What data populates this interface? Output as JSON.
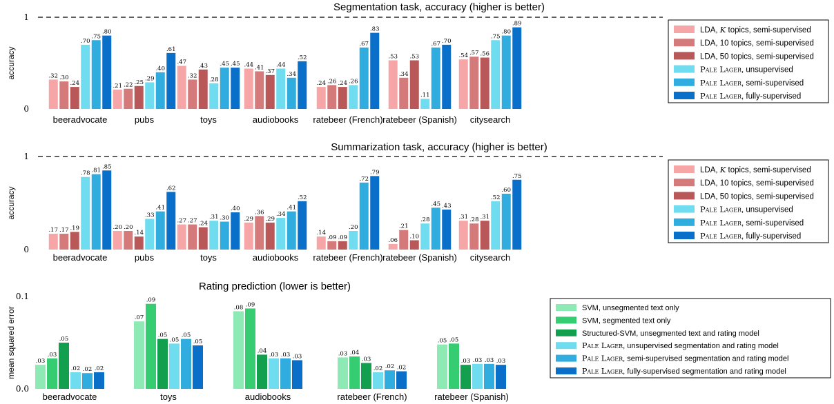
{
  "chart_data": [
    {
      "type": "bar",
      "title": "Segmentation task, accuracy (higher is better)",
      "ylabel": "accuracy",
      "ylim": [
        0,
        1
      ],
      "yticks": [
        "0",
        "1"
      ],
      "reference_line": 1,
      "categories": [
        "beeradvocate",
        "pubs",
        "toys",
        "audiobooks",
        "ratebeer (French)",
        "ratebeer (Spanish)",
        "citysearch"
      ],
      "series": [
        {
          "name": "LDA, K topics, semi-supervised",
          "color": "#f6a6a6",
          "values": [
            0.32,
            0.21,
            0.47,
            0.44,
            0.24,
            0.53,
            0.54
          ],
          "labels": [
            ".32",
            ".21",
            ".47",
            ".44",
            ".24",
            ".53",
            ".54"
          ]
        },
        {
          "name": "LDA, 10 topics, semi-supervised",
          "color": "#d57a7a",
          "values": [
            0.3,
            0.22,
            0.32,
            0.41,
            0.26,
            0.34,
            0.57
          ],
          "labels": [
            ".30",
            ".22",
            ".32",
            ".41",
            ".26",
            ".34",
            ".57"
          ]
        },
        {
          "name": "LDA, 50 topics, semi-supervised",
          "color": "#b85858",
          "values": [
            0.24,
            0.25,
            0.43,
            0.37,
            0.24,
            0.53,
            0.56
          ],
          "labels": [
            ".24",
            ".25",
            ".43",
            ".37",
            ".24",
            ".53",
            ".56"
          ]
        },
        {
          "name": "Pale Lager, unsupervised",
          "color": "#6fdcef",
          "values": [
            0.7,
            0.29,
            0.28,
            0.44,
            0.26,
            0.11,
            0.75
          ],
          "labels": [
            ".70",
            ".29",
            ".28",
            ".44",
            ".26",
            ".11",
            ".75"
          ]
        },
        {
          "name": "Pale Lager, semi-supervised",
          "color": "#30acdf",
          "values": [
            0.75,
            0.4,
            0.45,
            0.34,
            0.67,
            0.67,
            0.8
          ],
          "labels": [
            ".75",
            ".40",
            ".45",
            ".34",
            ".67",
            ".67",
            ".80"
          ]
        },
        {
          "name": "Pale Lager, fully-supervised",
          "color": "#0a6fc9",
          "values": [
            0.8,
            0.61,
            0.45,
            0.52,
            0.83,
            0.7,
            0.89
          ],
          "labels": [
            ".80",
            ".61",
            ".45",
            ".52",
            ".83",
            ".70",
            ".89"
          ]
        }
      ],
      "legend": [
        "LDA, K topics, semi-supervised",
        "LDA, 10 topics, semi-supervised",
        "LDA, 50 topics, semi-supervised",
        "Pale Lager, unsupervised",
        "Pale Lager, semi-supervised",
        "Pale Lager, fully-supervised"
      ],
      "legend_position": "right"
    },
    {
      "type": "bar",
      "title": "Summarization task, accuracy (higher is better)",
      "ylabel": "accuracy",
      "ylim": [
        0,
        1
      ],
      "yticks": [
        "0",
        "1"
      ],
      "reference_line": 1,
      "categories": [
        "beeradvocate",
        "pubs",
        "toys",
        "audiobooks",
        "ratebeer (French)",
        "ratebeer (Spanish)",
        "citysearch"
      ],
      "series": [
        {
          "name": "LDA, K topics, semi-supervised",
          "color": "#f6a6a6",
          "values": [
            0.17,
            0.2,
            0.27,
            0.29,
            0.14,
            0.06,
            0.31
          ],
          "labels": [
            ".17",
            ".20",
            ".27",
            ".29",
            ".14",
            ".06",
            ".31"
          ]
        },
        {
          "name": "LDA, 10 topics, semi-supervised",
          "color": "#d57a7a",
          "values": [
            0.17,
            0.2,
            0.27,
            0.36,
            0.09,
            0.21,
            0.28
          ],
          "labels": [
            ".17",
            ".20",
            ".27",
            ".36",
            ".09",
            ".21",
            ".28"
          ]
        },
        {
          "name": "LDA, 50 topics, semi-supervised",
          "color": "#b85858",
          "values": [
            0.19,
            0.14,
            0.24,
            0.29,
            0.09,
            0.1,
            0.31
          ],
          "labels": [
            ".19",
            ".14",
            ".24",
            ".29",
            ".09",
            ".10",
            ".31"
          ]
        },
        {
          "name": "Pale Lager, unsupervised",
          "color": "#6fdcef",
          "values": [
            0.78,
            0.33,
            0.31,
            0.34,
            0.2,
            0.28,
            0.52
          ],
          "labels": [
            ".78",
            ".33",
            ".31",
            ".34",
            ".20",
            ".28",
            ".52"
          ]
        },
        {
          "name": "Pale Lager, semi-supervised",
          "color": "#30acdf",
          "values": [
            0.81,
            0.41,
            0.3,
            0.41,
            0.72,
            0.45,
            0.6
          ],
          "labels": [
            ".81",
            ".41",
            ".30",
            ".41",
            ".72",
            ".45",
            ".60"
          ]
        },
        {
          "name": "Pale Lager, fully-supervised",
          "color": "#0a6fc9",
          "values": [
            0.85,
            0.62,
            0.4,
            0.52,
            0.79,
            0.43,
            0.75
          ],
          "labels": [
            ".85",
            ".62",
            ".40",
            ".52",
            ".79",
            ".43",
            ".75"
          ]
        }
      ],
      "legend": [
        "LDA, K topics, semi-supervised",
        "LDA, 10 topics, semi-supervised",
        "LDA, 50 topics, semi-supervised",
        "Pale Lager, unsupervised",
        "Pale Lager, semi-supervised",
        "Pale Lager, fully-supervised"
      ],
      "legend_position": "right"
    },
    {
      "type": "bar",
      "title": "Rating prediction (lower is better)",
      "ylabel": "mean squared error",
      "ylim": [
        0,
        0.1
      ],
      "yticks": [
        "0.0",
        "0.1"
      ],
      "categories": [
        "beeradvocate",
        "toys",
        "audiobooks",
        "ratebeer (French)",
        "ratebeer (Spanish)"
      ],
      "series": [
        {
          "name": "SVM, unsegmented text only",
          "color": "#8eeab5",
          "values": [
            0.026,
            0.073,
            0.084,
            0.034,
            0.048
          ],
          "labels": [
            ".03",
            ".07",
            ".08",
            ".03",
            ".05"
          ]
        },
        {
          "name": "SVM, segmented text only",
          "color": "#36cc72",
          "values": [
            0.033,
            0.092,
            0.087,
            0.035,
            0.049
          ],
          "labels": [
            ".03",
            ".09",
            ".09",
            ".04",
            ".05"
          ]
        },
        {
          "name": "Structured-SVM, unsegmented text and rating model",
          "color": "#12a04e",
          "values": [
            0.05,
            0.054,
            0.037,
            0.028,
            0.026
          ],
          "labels": [
            ".05",
            ".05",
            ".04",
            ".03",
            ".03"
          ]
        },
        {
          "name": "Pale Lager, unsupervised segmentation and rating model",
          "color": "#6fdcef",
          "values": [
            0.018,
            0.049,
            0.033,
            0.018,
            0.027
          ],
          "labels": [
            ".02",
            ".05",
            ".03",
            ".02",
            ".03"
          ]
        },
        {
          "name": "Pale Lager, semi-supervised segmentation and rating model",
          "color": "#30acdf",
          "values": [
            0.017,
            0.054,
            0.033,
            0.02,
            0.027
          ],
          "labels": [
            ".02",
            ".05",
            ".03",
            ".02",
            ".03"
          ]
        },
        {
          "name": "Pale Lager, fully-supervised segmentation and rating model",
          "color": "#0a6fc9",
          "values": [
            0.018,
            0.047,
            0.031,
            0.019,
            0.026
          ],
          "labels": [
            ".02",
            ".05",
            ".03",
            ".02",
            ".03"
          ]
        }
      ],
      "legend": [
        "SVM, unsegmented text only",
        "SVM, segmented text only",
        "Structured-SVM, unsegmented text and rating model",
        "Pale Lager, unsupervised segmentation and rating model",
        "Pale Lager, semi-supervised segmentation and rating model",
        "Pale Lager, fully-supervised segmentation and rating model"
      ],
      "legend_position": "right"
    }
  ]
}
